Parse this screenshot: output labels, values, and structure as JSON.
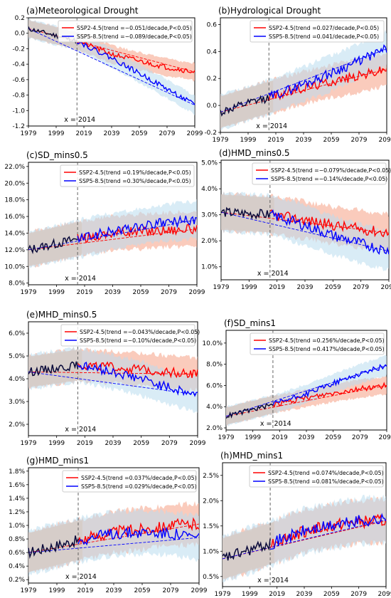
{
  "figure": {
    "series_colors": {
      "ssp245": "#ff0000",
      "ssp585": "#0000ff",
      "historical": "#0a0a3a"
    },
    "band_colors": {
      "ssp245": "#f7a98f",
      "ssp585": "#b9dcef",
      "overlap": "#d6cbc5"
    },
    "vline_label": "x = 2014"
  },
  "chart_data": [
    {
      "type": "line",
      "title": "(a)Meteorological Drought",
      "x_ticks": [
        "1979",
        "1999",
        "2019",
        "2039",
        "2059",
        "2079",
        "2099"
      ],
      "y_ticks": [
        "0.2",
        "0.0",
        "-0.2",
        "-0.4",
        "-0.6",
        "-0.8",
        "-1.0",
        "-1.2"
      ],
      "ylim": [
        -1.2,
        0.2
      ],
      "xlim": [
        1979,
        2099
      ],
      "vline": 2014,
      "hist_end": 2014,
      "band": 0.12,
      "series": [
        {
          "name": "SSP2-4.5(trend =−0.051/decade,P<0.05)",
          "key": "ssp245",
          "x": [
            1979,
            2014,
            2039,
            2059,
            2079,
            2099
          ],
          "values": [
            0.06,
            -0.1,
            -0.27,
            -0.36,
            -0.44,
            -0.5
          ]
        },
        {
          "name": "SSP5-8.5(trend =−0.089/decade,P<0.05)",
          "key": "ssp585",
          "x": [
            1979,
            2014,
            2039,
            2059,
            2079,
            2099
          ],
          "values": [
            0.06,
            -0.1,
            -0.32,
            -0.52,
            -0.72,
            -0.93
          ]
        }
      ]
    },
    {
      "type": "line",
      "title": "(b)Hydrological Drought",
      "x_ticks": [
        "1979",
        "1999",
        "2019",
        "2039",
        "2059",
        "2079",
        "2099"
      ],
      "y_ticks": [
        "0.6",
        "0.4",
        "0.2",
        "0.0",
        "-0.2"
      ],
      "ylim": [
        -0.2,
        0.65
      ],
      "xlim": [
        1979,
        2099
      ],
      "vline": 2014,
      "hist_end": 2014,
      "band": 0.13,
      "series": [
        {
          "name": "SSP2-4.5(trend =0.027/decade,P<0.05)",
          "key": "ssp245",
          "x": [
            1979,
            2014,
            2039,
            2059,
            2079,
            2099
          ],
          "values": [
            -0.05,
            0.06,
            0.13,
            0.18,
            0.22,
            0.27
          ]
        },
        {
          "name": "SSP5-8.5(trend =0.041/decade,P<0.05)",
          "key": "ssp585",
          "x": [
            1979,
            2014,
            2039,
            2059,
            2079,
            2099
          ],
          "values": [
            -0.05,
            0.06,
            0.16,
            0.24,
            0.33,
            0.42
          ]
        }
      ]
    },
    {
      "type": "line",
      "title": "(c)SD_mins0.5",
      "x_ticks": [
        "1979",
        "1999",
        "2019",
        "2039",
        "2059",
        "2079",
        "2099"
      ],
      "y_ticks": [
        "22.0%",
        "20.0%",
        "18.0%",
        "16.0%",
        "14.0%",
        "12.0%",
        "10.0%",
        "8.0%"
      ],
      "ylim": [
        7.8,
        22.5
      ],
      "xlim": [
        1979,
        2099
      ],
      "vline": 2014,
      "hist_end": 2014,
      "band": 2.2,
      "series": [
        {
          "name": "SSP2-4.5(trend =0.19%/decade,P<0.05)",
          "key": "ssp245",
          "x": [
            1979,
            2014,
            2039,
            2059,
            2079,
            2099
          ],
          "values": [
            12.0,
            13.3,
            14.0,
            14.2,
            14.4,
            14.5
          ]
        },
        {
          "name": "SSP5-8.5(trend =0.30%/decade,P<0.05)",
          "key": "ssp585",
          "x": [
            1979,
            2014,
            2039,
            2059,
            2079,
            2099
          ],
          "values": [
            12.0,
            13.3,
            14.2,
            14.8,
            15.3,
            15.6
          ]
        }
      ]
    },
    {
      "type": "line",
      "title": "(d)HMD_mins0.5",
      "x_ticks": [
        "1979",
        "1999",
        "2019",
        "2039",
        "2059",
        "2079",
        "2099"
      ],
      "y_ticks": [
        "5.0%",
        "4.0%",
        "3.0%",
        "2.0%",
        "1.0%"
      ],
      "ylim": [
        0.5,
        5.1
      ],
      "xlim": [
        1979,
        2099
      ],
      "vline": 2014,
      "hist_end": 2014,
      "band": 0.75,
      "series": [
        {
          "name": "SSP2-4.5(trend =−0.079%/decade,P<0.05)",
          "key": "ssp245",
          "x": [
            1979,
            2014,
            2039,
            2059,
            2079,
            2099
          ],
          "values": [
            3.1,
            3.0,
            2.8,
            2.6,
            2.45,
            2.3
          ]
        },
        {
          "name": "SSP5-8.5(trend =−0.14%/decade,P<0.05)",
          "key": "ssp585",
          "x": [
            1979,
            2014,
            2039,
            2059,
            2079,
            2099
          ],
          "values": [
            3.1,
            3.0,
            2.6,
            2.2,
            1.9,
            1.6
          ]
        }
      ]
    },
    {
      "type": "line",
      "title": "(e)MHD_mins0.5",
      "x_ticks": [
        "1979",
        "1999",
        "2019",
        "2039",
        "2059",
        "2079",
        "2099"
      ],
      "y_ticks": [
        "6.0%",
        "5.0%",
        "4.0%",
        "3.0%",
        "2.0%"
      ],
      "ylim": [
        1.5,
        6.5
      ],
      "xlim": [
        1979,
        2099
      ],
      "vline": 2014,
      "hist_end": 2014,
      "band": 0.75,
      "series": [
        {
          "name": "SSP2-4.5(trend =−0.043%/decade,P<0.05)",
          "key": "ssp245",
          "x": [
            1979,
            2014,
            2039,
            2059,
            2079,
            2099
          ],
          "values": [
            4.3,
            4.6,
            4.5,
            4.4,
            4.3,
            4.2
          ]
        },
        {
          "name": "SSP5-8.5(trend =−0.10%/decade,P<0.05)",
          "key": "ssp585",
          "x": [
            1979,
            2014,
            2039,
            2059,
            2079,
            2099
          ],
          "values": [
            4.3,
            4.6,
            4.3,
            4.0,
            3.6,
            3.3
          ]
        }
      ]
    },
    {
      "type": "line",
      "title": "(f)SD_mins1",
      "x_ticks": [
        "1979",
        "1999",
        "2019",
        "2039",
        "2059",
        "2079",
        "2099"
      ],
      "y_ticks": [
        "10.0%",
        "8.0%",
        "6.0%",
        "4.0%",
        "2.0%"
      ],
      "ylim": [
        1.8,
        11.2
      ],
      "xlim": [
        1979,
        2099
      ],
      "vline": 2014,
      "hist_end": 2014,
      "band": 0.9,
      "series": [
        {
          "name": "SSP2-4.5(trend =0.256%/decade,P<0.05)",
          "key": "ssp245",
          "x": [
            1979,
            2014,
            2039,
            2059,
            2079,
            2099
          ],
          "values": [
            3.1,
            4.2,
            4.8,
            5.3,
            5.7,
            6.0
          ]
        },
        {
          "name": "SSP5-8.5(trend =0.417%/decade,P<0.05)",
          "key": "ssp585",
          "x": [
            1979,
            2014,
            2039,
            2059,
            2079,
            2099
          ],
          "values": [
            3.1,
            4.2,
            5.2,
            6.2,
            7.1,
            7.9
          ]
        }
      ]
    },
    {
      "type": "line",
      "title": "(g)HMD_mins1",
      "x_ticks": [
        "1979",
        "1999",
        "2019",
        "2039",
        "2059",
        "2079",
        "2099"
      ],
      "y_ticks": [
        "1.8%",
        "1.6%",
        "1.4%",
        "1.2%",
        "1.0%",
        "0.8%",
        "0.6%",
        "0.4%",
        "0.2%"
      ],
      "ylim": [
        0.15,
        1.85
      ],
      "xlim": [
        1979,
        2099
      ],
      "vline": 2014,
      "hist_end": 2014,
      "band": 0.32,
      "series": [
        {
          "name": "SSP2-4.5(trend =0.037%/decade,P<0.05)",
          "key": "ssp245",
          "x": [
            1979,
            2014,
            2039,
            2059,
            2079,
            2099
          ],
          "values": [
            0.6,
            0.78,
            0.9,
            0.95,
            1.0,
            1.02
          ]
        },
        {
          "name": "SSP5-8.5(trend =0.029%/decade,P<0.05)",
          "key": "ssp585",
          "x": [
            1979,
            2014,
            2039,
            2059,
            2079,
            2099
          ],
          "values": [
            0.6,
            0.78,
            0.88,
            0.9,
            0.88,
            0.82
          ]
        }
      ]
    },
    {
      "type": "line",
      "title": "(h)MHD_mins1",
      "x_ticks": [
        "1979",
        "1999",
        "2019",
        "2039",
        "2059",
        "2079",
        "2099"
      ],
      "y_ticks": [
        "2.5%",
        "2.0%",
        "1.5%",
        "1.0%",
        "0.5%"
      ],
      "ylim": [
        0.3,
        2.75
      ],
      "xlim": [
        1979,
        2099
      ],
      "vline": 2014,
      "hist_end": 2014,
      "band": 0.45,
      "series": [
        {
          "name": "SSP2-4.5(trend =0.074%/decade,P<0.05)",
          "key": "ssp245",
          "x": [
            1979,
            2014,
            2039,
            2059,
            2079,
            2099
          ],
          "values": [
            0.85,
            1.15,
            1.4,
            1.5,
            1.58,
            1.6
          ]
        },
        {
          "name": "SSP5-8.5(trend =0.081%/decade,P<0.05)",
          "key": "ssp585",
          "x": [
            1979,
            2014,
            2039,
            2059,
            2079,
            2099
          ],
          "values": [
            0.85,
            1.15,
            1.4,
            1.5,
            1.6,
            1.62
          ]
        }
      ]
    }
  ]
}
